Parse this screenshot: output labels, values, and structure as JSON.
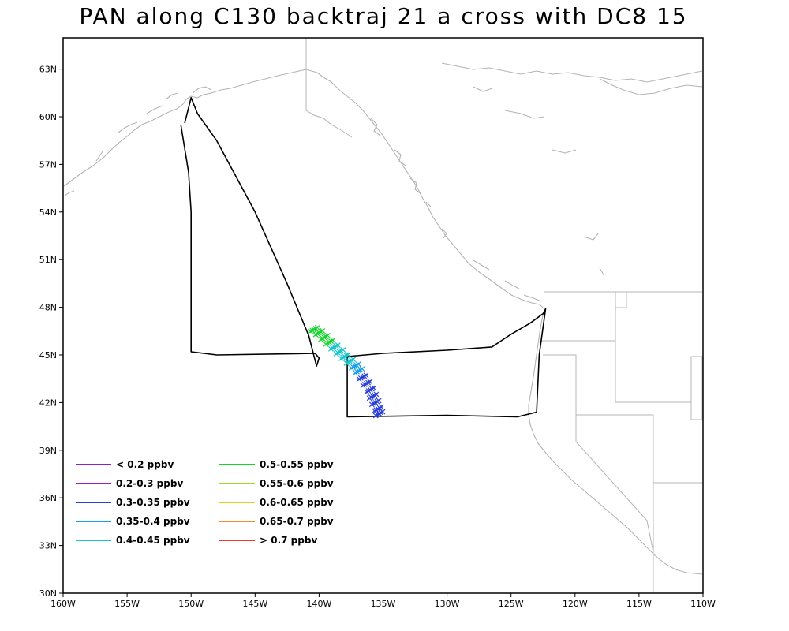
{
  "title": "PAN along C130 backtraj 21 a cross with DC8 15",
  "axes": {
    "lon_labels": [
      "160W",
      "155W",
      "150W",
      "145W",
      "140W",
      "135W",
      "130W",
      "125W",
      "120W",
      "115W",
      "110W"
    ],
    "lat_labels": [
      "30N",
      "33N",
      "36N",
      "39N",
      "42N",
      "45N",
      "48N",
      "51N",
      "54N",
      "57N",
      "60N",
      "63N"
    ],
    "lon_range": [
      -160,
      -110
    ],
    "lat_range": [
      30,
      65
    ]
  },
  "legend": {
    "items": [
      {
        "label": "< 0.2 ppbv",
        "color": "#8a1fd6"
      },
      {
        "label": "0.2-0.3 ppbv",
        "color": "#9a1ccc"
      },
      {
        "label": "0.3-0.35 ppbv",
        "color": "#2a3fd8"
      },
      {
        "label": "0.35-0.4 ppbv",
        "color": "#16a0ee"
      },
      {
        "label": "0.4-0.45 ppbv",
        "color": "#16c4cc"
      },
      {
        "label": "0.5-0.55 ppbv",
        "color": "#14d42c"
      },
      {
        "label": "0.55-0.6 ppbv",
        "color": "#9ed828"
      },
      {
        "label": "0.6-0.65 ppbv",
        "color": "#dcd020"
      },
      {
        "label": "0.65-0.7 ppbv",
        "color": "#f08a2a"
      },
      {
        "label": "> 0.7 ppbv",
        "color": "#f03a30"
      }
    ]
  },
  "trajectory_markers": [
    {
      "lon": -140.4,
      "lat": 46.6,
      "category": 5
    },
    {
      "lon": -140.0,
      "lat": 46.4,
      "category": 5
    },
    {
      "lon": -139.6,
      "lat": 46.1,
      "category": 5
    },
    {
      "lon": -139.2,
      "lat": 45.8,
      "category": 5
    },
    {
      "lon": -138.8,
      "lat": 45.5,
      "category": 4
    },
    {
      "lon": -138.4,
      "lat": 45.2,
      "category": 4
    },
    {
      "lon": -138.0,
      "lat": 44.9,
      "category": 4
    },
    {
      "lon": -137.6,
      "lat": 44.6,
      "category": 4
    },
    {
      "lon": -137.2,
      "lat": 44.3,
      "category": 3
    },
    {
      "lon": -136.9,
      "lat": 44.0,
      "category": 3
    },
    {
      "lon": -136.6,
      "lat": 43.6,
      "category": 2
    },
    {
      "lon": -136.3,
      "lat": 43.2,
      "category": 2
    },
    {
      "lon": -136.0,
      "lat": 42.8,
      "category": 2
    },
    {
      "lon": -135.8,
      "lat": 42.4,
      "category": 2
    },
    {
      "lon": -135.6,
      "lat": 42.0,
      "category": 2
    },
    {
      "lon": -135.4,
      "lat": 41.6,
      "category": 2
    },
    {
      "lon": -135.3,
      "lat": 41.3,
      "category": 2
    }
  ],
  "flight_tracks": [
    [
      [
        -150.5,
        59.6
      ],
      [
        -150.0,
        61.2
      ],
      [
        -149.5,
        60.2
      ],
      [
        -148.0,
        58.5
      ],
      [
        -145.0,
        54.0
      ],
      [
        -142.5,
        49.5
      ],
      [
        -140.8,
        46.2
      ],
      [
        -140.2,
        44.3
      ],
      [
        -140.0,
        44.8
      ],
      [
        -140.3,
        45.1
      ],
      [
        -148.0,
        45.0
      ],
      [
        -150.0,
        45.2
      ],
      [
        -150.0,
        54.0
      ],
      [
        -150.2,
        56.5
      ],
      [
        -150.8,
        59.5
      ]
    ],
    [
      [
        -137.8,
        44.9
      ],
      [
        -135.0,
        45.1
      ],
      [
        -130.0,
        45.3
      ],
      [
        -126.5,
        45.5
      ],
      [
        -125.0,
        46.3
      ],
      [
        -123.5,
        47.0
      ],
      [
        -122.5,
        47.6
      ],
      [
        -122.3,
        47.9
      ],
      [
        -122.8,
        45.0
      ],
      [
        -123.0,
        41.4
      ],
      [
        -124.5,
        41.1
      ],
      [
        -130.0,
        41.2
      ],
      [
        -137.8,
        41.1
      ],
      [
        -137.8,
        44.9
      ]
    ]
  ]
}
